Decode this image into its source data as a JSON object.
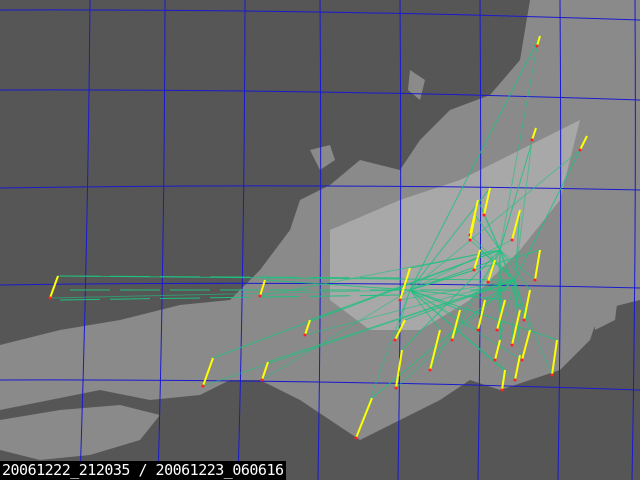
{
  "map": {
    "timestamp_label": "20061222_212035 / 20061223_060616",
    "colors": {
      "sea": "#565656",
      "land": "#8a8a8a",
      "land_bright": "#bdbdbd",
      "grid": "#1a1ad0",
      "link_lines": "#20c080",
      "track": "#ffff00",
      "track_end": "#ff2020"
    }
  }
}
